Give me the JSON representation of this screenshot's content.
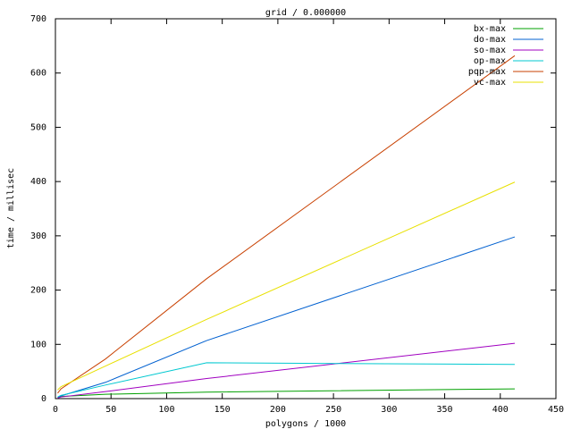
{
  "chart_data": {
    "type": "line",
    "title": "grid / 0.000000",
    "x_label": "polygons / 1000",
    "y_label": "time / millisec",
    "x": [
      2,
      5,
      45,
      136,
      413
    ],
    "series": [
      {
        "name": "bx-max",
        "color": "#00a000",
        "values": [
          2,
          4,
          8,
          12,
          18
        ]
      },
      {
        "name": "do-max",
        "color": "#0060d0",
        "values": [
          2,
          5,
          30,
          107,
          298
        ]
      },
      {
        "name": "so-max",
        "color": "#a000c0",
        "values": [
          1,
          3,
          13,
          37,
          102
        ]
      },
      {
        "name": "op-max",
        "color": "#00c8d0",
        "values": [
          3,
          6,
          25,
          66,
          63
        ]
      },
      {
        "name": "pqp-max",
        "color": "#c84000",
        "values": [
          10,
          18,
          73,
          221,
          632
        ]
      },
      {
        "name": "vc-max",
        "color": "#e8e000",
        "values": [
          16,
          22,
          60,
          146,
          399
        ]
      }
    ],
    "xlim": [
      0,
      450
    ],
    "xticks": [
      0,
      50,
      100,
      150,
      200,
      250,
      300,
      350,
      400,
      450
    ],
    "ylim": [
      0,
      700
    ],
    "yticks": [
      0,
      100,
      200,
      300,
      400,
      500,
      600,
      700
    ],
    "grid": false,
    "legend": "top-right"
  }
}
